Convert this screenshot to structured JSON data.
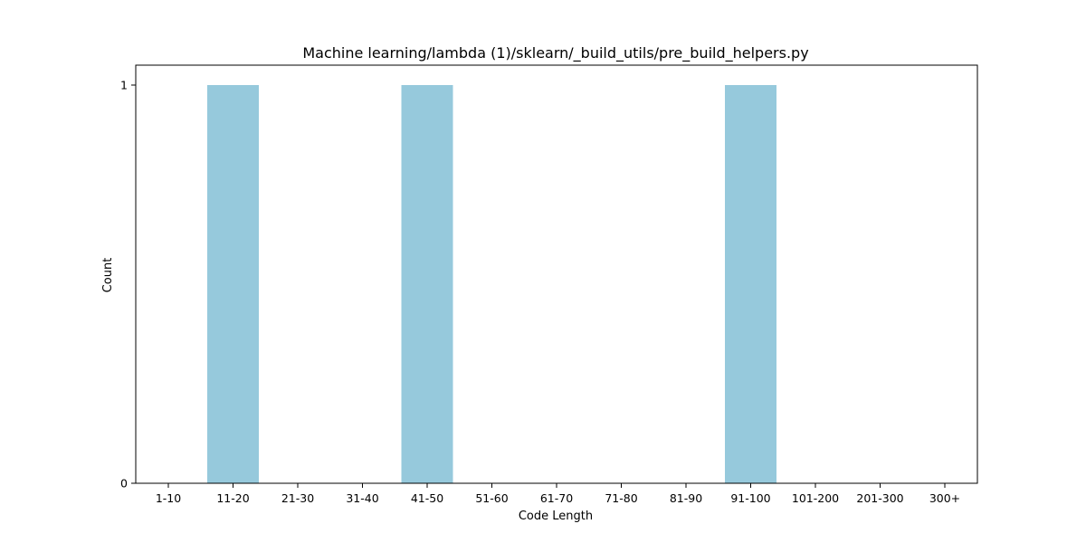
{
  "chart_data": {
    "type": "bar",
    "title": "Machine learning/lambda (1)/sklearn/_build_utils/pre_build_helpers.py",
    "xlabel": "Code Length",
    "ylabel": "Count",
    "categories": [
      "1-10",
      "11-20",
      "21-30",
      "31-40",
      "41-50",
      "51-60",
      "61-70",
      "71-80",
      "81-90",
      "91-100",
      "101-200",
      "201-300",
      "300+"
    ],
    "values": [
      0,
      1,
      0,
      0,
      1,
      0,
      0,
      0,
      0,
      1,
      0,
      0,
      0
    ],
    "yticks": [
      "0",
      "1"
    ],
    "ylim": [
      0,
      1.05
    ],
    "grid": false,
    "legend": "none",
    "bar_color": "#96c9dc"
  }
}
